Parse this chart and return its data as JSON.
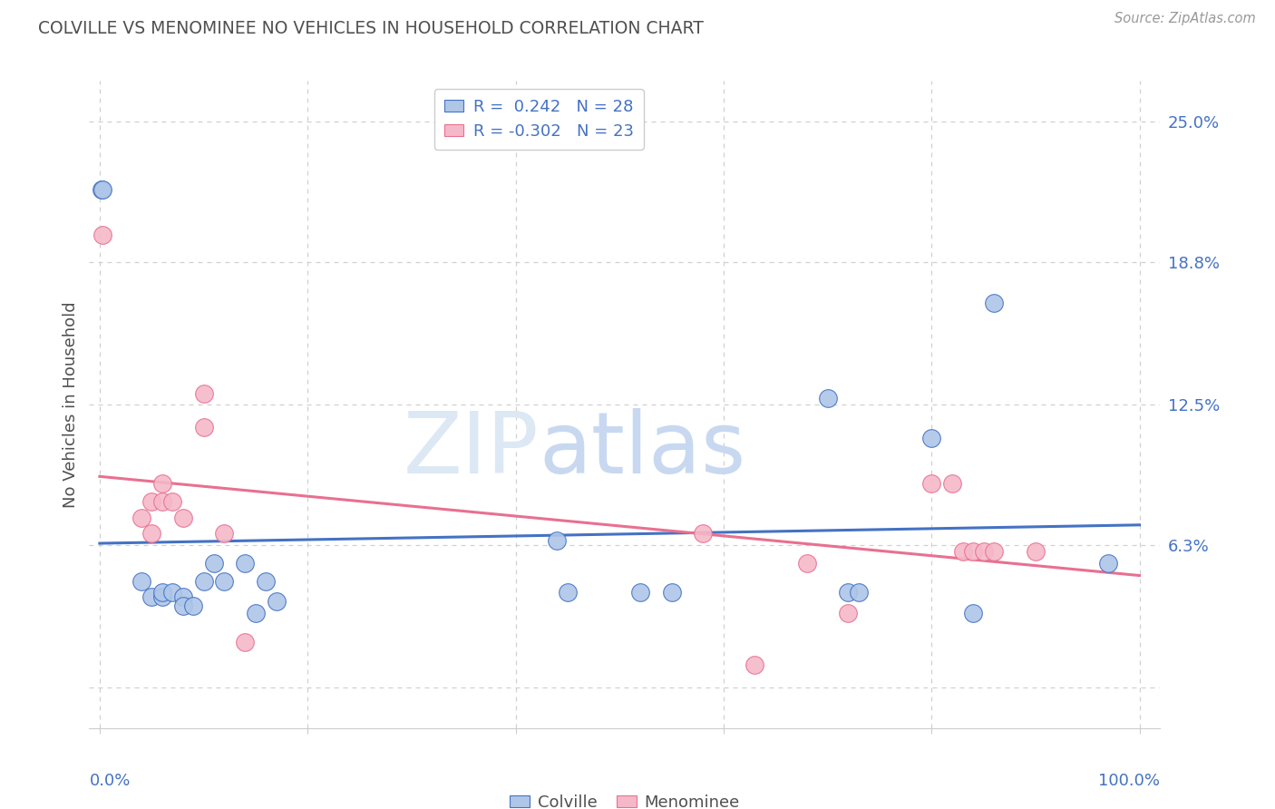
{
  "title": "COLVILLE VS MENOMINEE NO VEHICLES IN HOUSEHOLD CORRELATION CHART",
  "source": "Source: ZipAtlas.com",
  "ylabel": "No Vehicles in Household",
  "ytick_vals": [
    0.0,
    0.063,
    0.125,
    0.188,
    0.25
  ],
  "ytick_labels": [
    "",
    "6.3%",
    "12.5%",
    "18.8%",
    "25.0%"
  ],
  "legend_blue_label": "R =  0.242   N = 28",
  "legend_pink_label": "R = -0.302   N = 23",
  "colville_color": "#aec6e8",
  "menominee_color": "#f5b8c8",
  "blue_line_color": "#4472c4",
  "pink_line_color": "#e87090",
  "colville_x": [
    0.002,
    0.003,
    0.04,
    0.05,
    0.06,
    0.06,
    0.07,
    0.08,
    0.08,
    0.09,
    0.1,
    0.11,
    0.12,
    0.14,
    0.15,
    0.16,
    0.17,
    0.44,
    0.45,
    0.52,
    0.55,
    0.7,
    0.72,
    0.73,
    0.8,
    0.84,
    0.86,
    0.97
  ],
  "colville_y": [
    0.22,
    0.22,
    0.047,
    0.04,
    0.04,
    0.042,
    0.042,
    0.04,
    0.036,
    0.036,
    0.047,
    0.055,
    0.047,
    0.055,
    0.033,
    0.047,
    0.038,
    0.065,
    0.042,
    0.042,
    0.042,
    0.128,
    0.042,
    0.042,
    0.11,
    0.033,
    0.17,
    0.055
  ],
  "menominee_x": [
    0.003,
    0.04,
    0.05,
    0.05,
    0.06,
    0.06,
    0.07,
    0.08,
    0.1,
    0.1,
    0.12,
    0.14,
    0.58,
    0.63,
    0.68,
    0.72,
    0.8,
    0.82,
    0.83,
    0.84,
    0.85,
    0.86,
    0.9
  ],
  "menominee_y": [
    0.2,
    0.075,
    0.082,
    0.068,
    0.09,
    0.082,
    0.082,
    0.075,
    0.115,
    0.13,
    0.068,
    0.02,
    0.068,
    0.01,
    0.055,
    0.033,
    0.09,
    0.09,
    0.06,
    0.06,
    0.06,
    0.06,
    0.06
  ],
  "watermark_zip": "ZIP",
  "watermark_atlas": "atlas",
  "background_color": "#ffffff",
  "grid_color": "#d0d0d0",
  "title_color": "#505050",
  "axis_label_color": "#4472c4",
  "marker_size": 200,
  "ylim_min": -0.018,
  "ylim_max": 0.268,
  "xlim_min": -0.01,
  "xlim_max": 1.02
}
